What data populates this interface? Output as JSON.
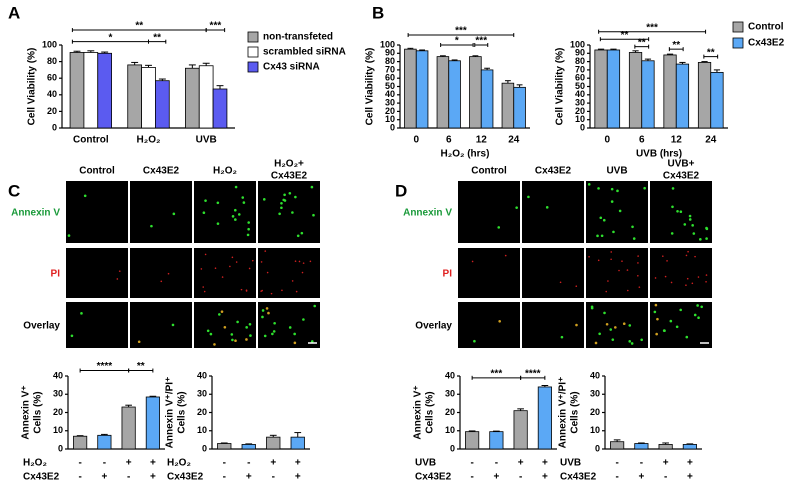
{
  "panels": [
    "A",
    "B",
    "C",
    "D"
  ],
  "micrographs": [
    {
      "column_labels": [
        [
          "Control"
        ],
        [
          "Cx43E2"
        ],
        [
          "H₂O₂"
        ],
        [
          "H₂O₂+",
          "Cx43E2"
        ]
      ],
      "row_labels": [
        "Annexin V",
        "PI",
        "Overlay"
      ]
    },
    {
      "column_labels": [
        [
          "Control"
        ],
        [
          "Cx43E2"
        ],
        [
          "UVB"
        ],
        [
          "UVB+",
          "Cx43E2"
        ]
      ],
      "row_labels": [
        "Annexin V",
        "PI",
        "Overlay"
      ]
    }
  ],
  "chart_data": [
    {
      "type": "bar",
      "y_label": [
        "Cell Viability (%)"
      ],
      "categories": [
        "Control",
        "H₂O₂",
        "UVB"
      ],
      "series": [
        {
          "name": "non-transfeted",
          "color": "#a6a6a6",
          "values": [
            91,
            76,
            72
          ],
          "errors": [
            1.5,
            3,
            4
          ]
        },
        {
          "name": "scrambled siRNA",
          "color": "#ffffff",
          "values": [
            91,
            73,
            75
          ],
          "errors": [
            2,
            2.5,
            3
          ]
        },
        {
          "name": "Cx43 siRNA",
          "color": "#5b5bf0",
          "values": [
            90,
            57,
            47
          ],
          "errors": [
            1.5,
            2,
            4
          ]
        }
      ],
      "ylim": [
        0,
        100
      ],
      "yticks": [
        0,
        20,
        40,
        60,
        80,
        100
      ],
      "annotations": [
        "**",
        "***",
        "*",
        "**"
      ]
    },
    {
      "type": "bar",
      "y_label": [
        "Cell Viability (%)"
      ],
      "x_label": "H₂O₂ (hrs)",
      "categories": [
        "0",
        "6",
        "12",
        "24"
      ],
      "series": [
        {
          "name": "Control",
          "color": "#a6a6a6",
          "values": [
            95,
            86,
            86,
            54
          ],
          "errors": [
            1,
            1,
            1,
            3
          ]
        },
        {
          "name": "Cx43E2",
          "color": "#5ba8f5",
          "values": [
            93,
            81,
            70,
            49
          ],
          "errors": [
            1,
            1,
            2,
            3
          ]
        }
      ],
      "ylim": [
        0,
        100
      ],
      "yticks": [
        0,
        10,
        20,
        30,
        40,
        50,
        60,
        70,
        80,
        90,
        100
      ],
      "annotations": [
        "***",
        "*",
        "***"
      ]
    },
    {
      "type": "bar",
      "y_label": [
        "Cell Viability (%)"
      ],
      "x_label": "UVB (hrs)",
      "categories": [
        "0",
        "6",
        "12",
        "24"
      ],
      "legend": true,
      "series": [
        {
          "name": "Control",
          "color": "#a6a6a6",
          "values": [
            94,
            91,
            88,
            79
          ],
          "errors": [
            1,
            2,
            1,
            1
          ]
        },
        {
          "name": "Cx43E2",
          "color": "#5ba8f5",
          "values": [
            94,
            81,
            77,
            67
          ],
          "errors": [
            1,
            2,
            2,
            3
          ]
        }
      ],
      "ylim": [
        0,
        100
      ],
      "yticks": [
        0,
        10,
        20,
        30,
        40,
        50,
        60,
        70,
        80,
        90,
        100
      ],
      "annotations": [
        "***",
        "**",
        "**",
        "**",
        "**"
      ]
    },
    {
      "type": "bar",
      "y_label": [
        "Annexin V⁺",
        "Cells (%)"
      ],
      "values": [
        7,
        7.5,
        23,
        28.5
      ],
      "errors": [
        0.3,
        0.5,
        1,
        0.4
      ],
      "colors": [
        "#a6a6a6",
        "#5ba8f5",
        "#a6a6a6",
        "#5ba8f5"
      ],
      "ylim": [
        0,
        40
      ],
      "yticks": [
        0,
        10,
        20,
        30,
        40
      ],
      "annotations": [
        "****",
        "**"
      ],
      "treatment_rows": [
        {
          "label": "H₂O₂",
          "marks": [
            "-",
            "-",
            "+",
            "+"
          ]
        },
        {
          "label": "Cx43E2",
          "marks": [
            "-",
            "+",
            "-",
            "+"
          ]
        }
      ]
    },
    {
      "type": "bar",
      "y_label": [
        "Annexin V⁺/PI⁺",
        "Cells (%)"
      ],
      "values": [
        3,
        2.5,
        6.5,
        6.5
      ],
      "errors": [
        0.3,
        0.3,
        1,
        2.5
      ],
      "colors": [
        "#a6a6a6",
        "#5ba8f5",
        "#a6a6a6",
        "#5ba8f5"
      ],
      "ylim": [
        0,
        40
      ],
      "yticks": [
        0,
        10,
        20,
        30,
        40
      ],
      "treatment_rows": [
        {
          "label": "H₂O₂",
          "marks": [
            "-",
            "-",
            "+",
            "+"
          ]
        },
        {
          "label": "Cx43E2",
          "marks": [
            "-",
            "+",
            "-",
            "+"
          ]
        }
      ]
    },
    {
      "type": "bar",
      "y_label": [
        "Annexin V⁺",
        "Cells (%)"
      ],
      "values": [
        9.5,
        9.5,
        21,
        34
      ],
      "errors": [
        0.4,
        0.3,
        1,
        0.8
      ],
      "colors": [
        "#a6a6a6",
        "#5ba8f5",
        "#a6a6a6",
        "#5ba8f5"
      ],
      "ylim": [
        0,
        40
      ],
      "yticks": [
        0,
        10,
        20,
        30,
        40
      ],
      "annotations": [
        "***",
        "****"
      ],
      "treatment_rows": [
        {
          "label": "UVB",
          "marks": [
            "-",
            "-",
            "+",
            "+"
          ]
        },
        {
          "label": "Cx43E2",
          "marks": [
            "-",
            "+",
            "-",
            "+"
          ]
        }
      ]
    },
    {
      "type": "bar",
      "y_label": [
        "Annexin V⁺/PI⁺",
        "Cells (%)"
      ],
      "values": [
        4,
        3,
        2.5,
        2.5
      ],
      "errors": [
        1,
        0.3,
        0.8,
        0.3
      ],
      "colors": [
        "#a6a6a6",
        "#5ba8f5",
        "#a6a6a6",
        "#5ba8f5"
      ],
      "ylim": [
        0,
        40
      ],
      "yticks": [
        0,
        10,
        20,
        30,
        40
      ],
      "treatment_rows": [
        {
          "label": "UVB",
          "marks": [
            "-",
            "-",
            "+",
            "+"
          ]
        },
        {
          "label": "Cx43E2",
          "marks": [
            "-",
            "+",
            "-",
            "+"
          ]
        }
      ]
    }
  ]
}
